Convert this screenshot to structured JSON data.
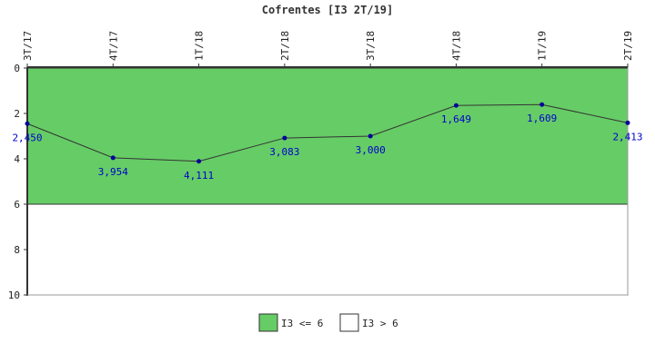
{
  "chart_data": {
    "type": "line",
    "title": "Cofrentes [I3 2T/19]",
    "categories": [
      "3T/17",
      "4T/17",
      "1T/18",
      "2T/18",
      "3T/18",
      "4T/18",
      "1T/19",
      "2T/19"
    ],
    "values": [
      2.45,
      3.954,
      4.111,
      3.083,
      3.0,
      1.649,
      1.609,
      2.413
    ],
    "data_labels": [
      "2,450",
      "3,954",
      "4,111",
      "3,083",
      "3,000",
      "1,649",
      "1,609",
      "2,413"
    ],
    "ylim": [
      0,
      10
    ],
    "y_inverted": true,
    "yticks": [
      0,
      2,
      4,
      6,
      8,
      10
    ],
    "ytick_labels": [
      "0",
      "2",
      "4",
      "6",
      "8",
      "10"
    ],
    "xlabel": "",
    "ylabel": "",
    "grid": false,
    "bands": [
      {
        "from": 0,
        "to": 6,
        "color": "#66cc66",
        "label": "I3 <= 6"
      },
      {
        "from": 6,
        "to": 10,
        "color": "#ffffff",
        "label": "I3 > 6"
      }
    ],
    "legend": {
      "position": "bottom-center",
      "entries": [
        {
          "label": "I3 <= 6",
          "color": "#66cc66"
        },
        {
          "label": "I3 > 6",
          "color": "#ffffff"
        }
      ]
    },
    "colors": {
      "line": "#333333",
      "marker": "#000099",
      "data_label": "#0000cc",
      "axis": "#333333"
    }
  }
}
